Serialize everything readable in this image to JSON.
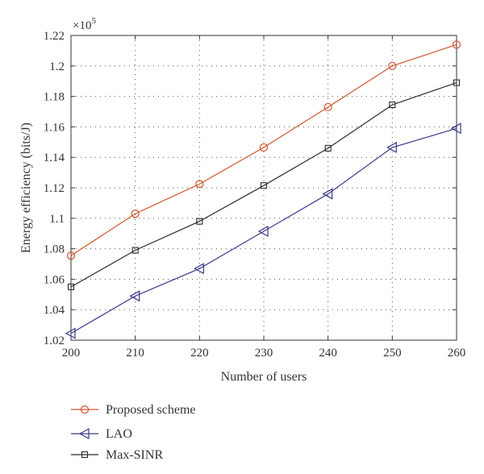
{
  "chart_data": {
    "type": "line",
    "xlabel": "Number of users",
    "ylabel": "Energy efficiency (bits/J)",
    "y_multiplier": "×10",
    "y_multiplier_exp": "5",
    "xlim": [
      200,
      260
    ],
    "ylim": [
      1.02,
      1.22
    ],
    "x_ticks": [
      "200",
      "210",
      "220",
      "230",
      "240",
      "250",
      "260"
    ],
    "y_ticks": [
      "1.02",
      "1.04",
      "1.06",
      "1.08",
      "1.1",
      "1.12",
      "1.14",
      "1.16",
      "1.18",
      "1.2",
      "1.22"
    ],
    "grid": true,
    "legend_position": "below",
    "x": [
      200,
      210,
      220,
      230,
      240,
      250,
      260
    ],
    "series": [
      {
        "name": "Proposed scheme",
        "marker": "circle",
        "color": "#d2532a",
        "values": [
          1.0755,
          1.103,
          1.1225,
          1.1465,
          1.173,
          1.2,
          1.214
        ]
      },
      {
        "name": "LAO",
        "marker": "triangle-left",
        "color": "#3a3a8c",
        "values": [
          1.0245,
          1.049,
          1.067,
          1.0915,
          1.116,
          1.1465,
          1.159
        ]
      },
      {
        "name": "Max-SINR",
        "marker": "square",
        "color": "#2a2a2a",
        "values": [
          1.055,
          1.079,
          1.098,
          1.1215,
          1.146,
          1.1745,
          1.189
        ]
      }
    ]
  }
}
